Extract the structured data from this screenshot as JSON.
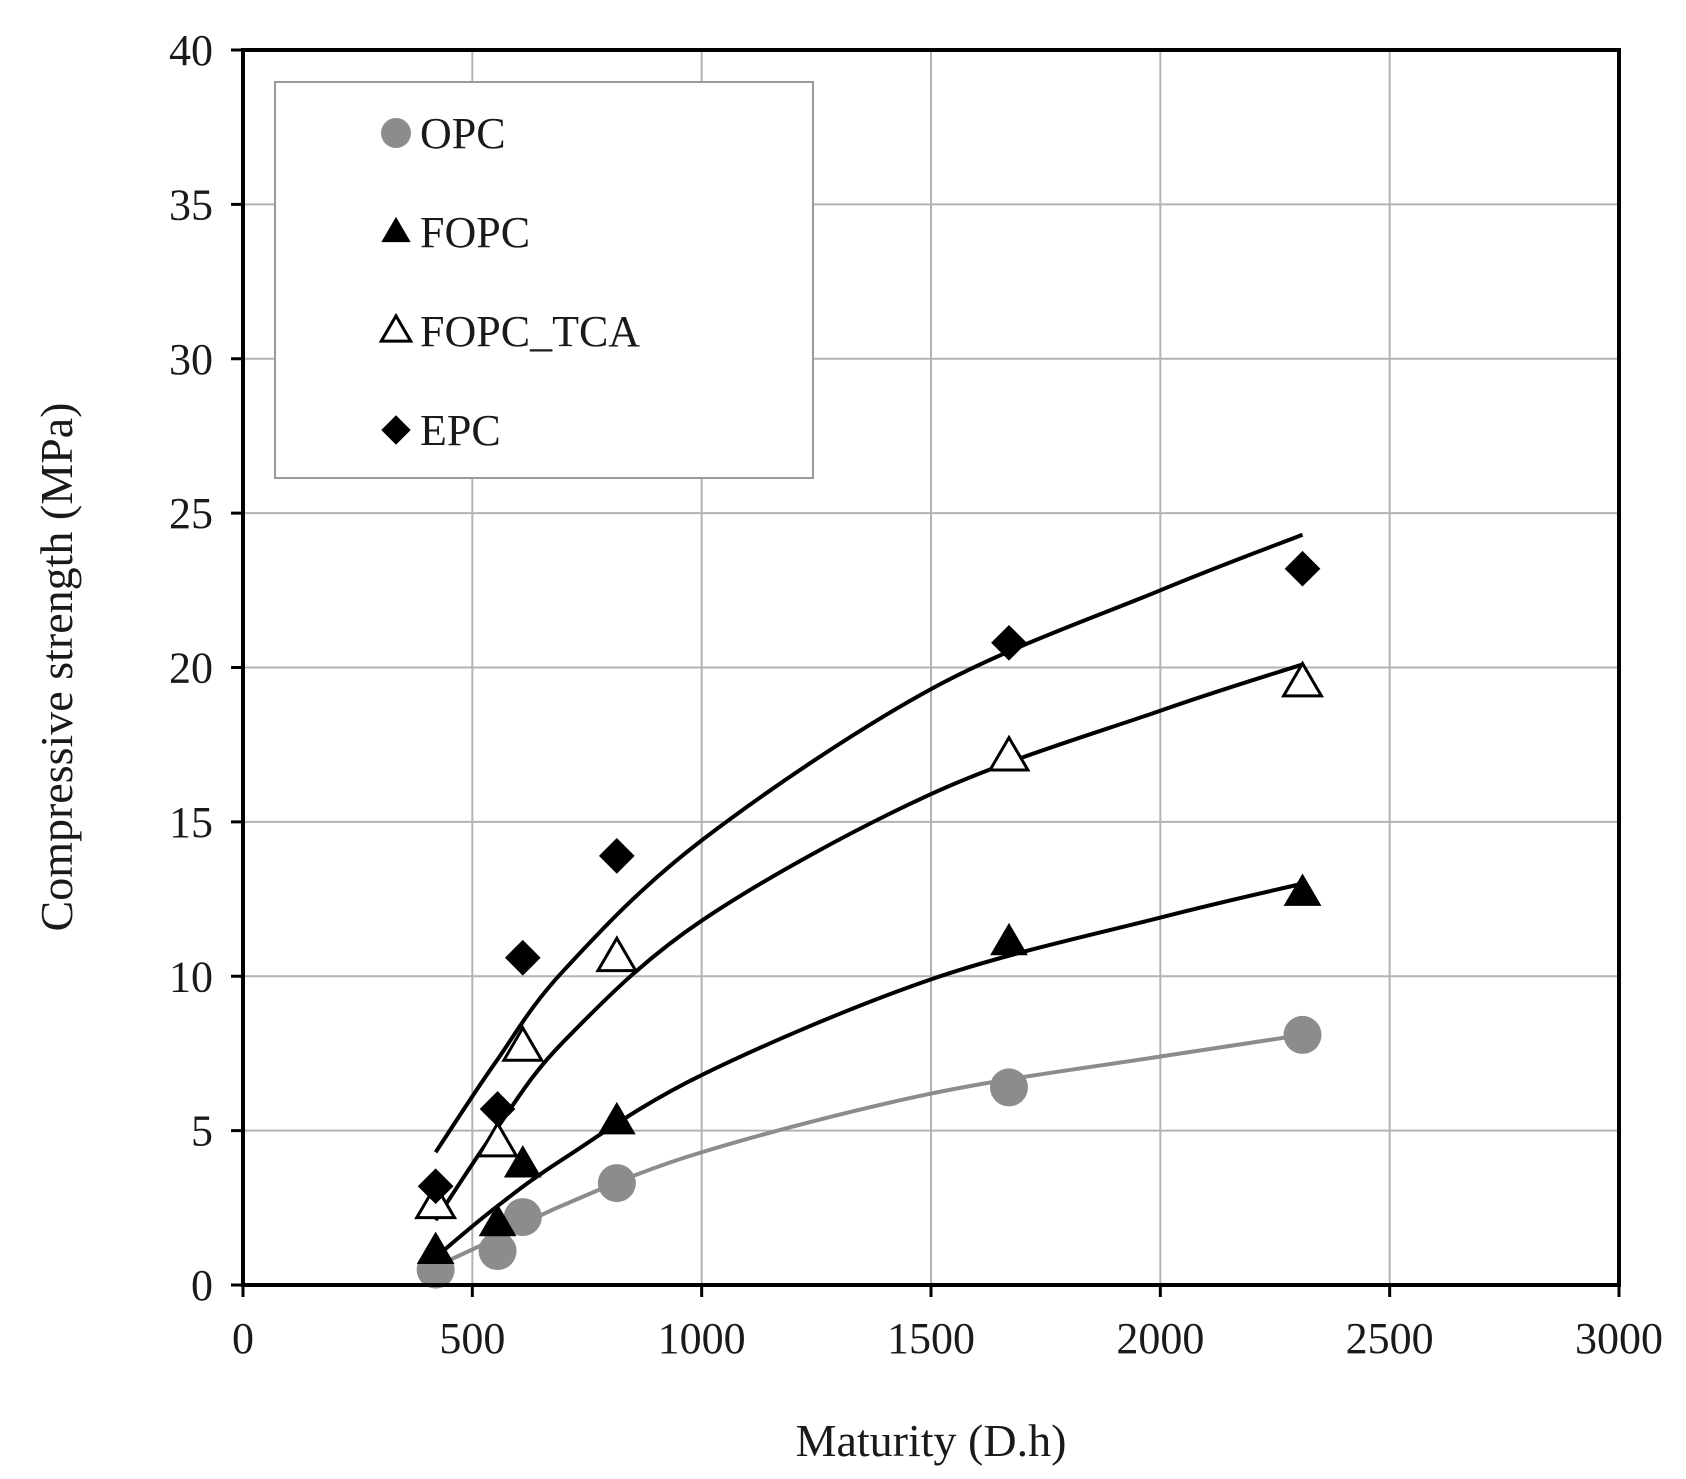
{
  "chart_data": {
    "type": "scatter",
    "title": "",
    "xlabel": "Maturity (D.h)",
    "ylabel": "Compressive strength (MPa)",
    "xlim": [
      0,
      3000
    ],
    "ylim": [
      0,
      40
    ],
    "xticks": [
      0,
      500,
      1000,
      1500,
      2000,
      2500,
      3000
    ],
    "yticks": [
      0,
      5,
      10,
      15,
      20,
      25,
      30,
      35,
      40
    ],
    "grid": true,
    "legend_position": "top-left",
    "series": [
      {
        "name": "OPC",
        "marker": "circle",
        "color": "#8c8c8c",
        "x": [
          420,
          555,
          610,
          815,
          1670,
          2310
        ],
        "y": [
          0.5,
          1.1,
          2.2,
          3.3,
          6.4,
          8.1
        ],
        "trend": {
          "model": "power",
          "x_from": 420,
          "x_to": 2310,
          "points": [
            [
              420,
              0.6
            ],
            [
              550,
              1.5
            ],
            [
              700,
              2.6
            ],
            [
              1000,
              4.3
            ],
            [
              1500,
              6.2
            ],
            [
              2000,
              7.4
            ],
            [
              2310,
              8.1
            ]
          ]
        }
      },
      {
        "name": "FOPC",
        "marker": "triangle-filled",
        "color": "#000000",
        "x": [
          420,
          555,
          610,
          815,
          1670,
          2310
        ],
        "y": [
          1.1,
          2.0,
          3.9,
          5.3,
          11.1,
          12.7
        ],
        "trend": {
          "model": "power",
          "x_from": 420,
          "x_to": 2310,
          "points": [
            [
              420,
              0.9
            ],
            [
              550,
              2.5
            ],
            [
              700,
              4.1
            ],
            [
              1000,
              6.8
            ],
            [
              1500,
              9.9
            ],
            [
              2000,
              11.9
            ],
            [
              2310,
              13.0
            ]
          ]
        }
      },
      {
        "name": "FOPC_TCA",
        "marker": "triangle-open",
        "color": "#000000",
        "x": [
          420,
          555,
          610,
          815,
          1670,
          2310
        ],
        "y": [
          2.6,
          4.6,
          7.7,
          10.6,
          17.1,
          19.5
        ],
        "trend": {
          "model": "power",
          "x_from": 420,
          "x_to": 2310,
          "points": [
            [
              420,
              2.1
            ],
            [
              550,
              5.0
            ],
            [
              700,
              7.9
            ],
            [
              1000,
              11.8
            ],
            [
              1500,
              15.9
            ],
            [
              2000,
              18.6
            ],
            [
              2310,
              20.1
            ]
          ]
        }
      },
      {
        "name": "EPC",
        "marker": "diamond",
        "color": "#000000",
        "x": [
          420,
          555,
          610,
          815,
          1670,
          2310
        ],
        "y": [
          3.2,
          5.7,
          10.6,
          13.9,
          20.8,
          23.2
        ],
        "trend": {
          "model": "power",
          "x_from": 420,
          "x_to": 2310,
          "points": [
            [
              420,
              4.3
            ],
            [
              550,
              7.2
            ],
            [
              700,
              10.2
            ],
            [
              1000,
              14.4
            ],
            [
              1500,
              19.3
            ],
            [
              2000,
              22.5
            ],
            [
              2310,
              24.3
            ]
          ]
        }
      }
    ]
  }
}
